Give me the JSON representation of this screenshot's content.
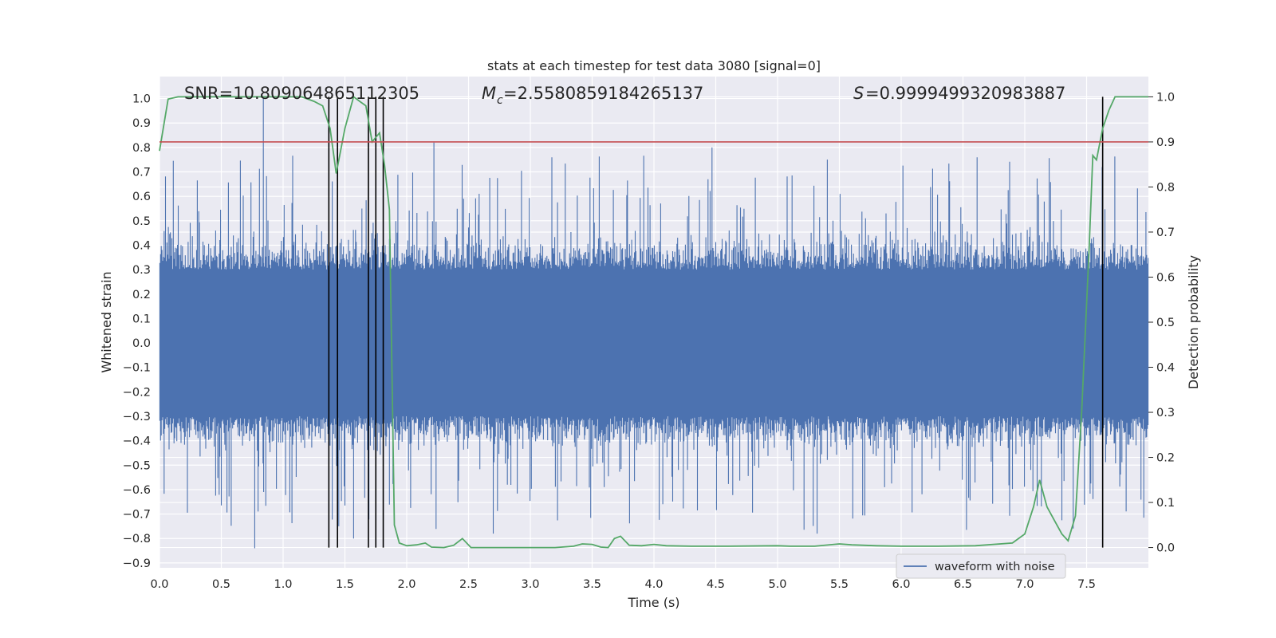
{
  "chart_data": {
    "type": "line",
    "title": "stats at each timestep for test data 3080 [signal=0]",
    "xlabel": "Time (s)",
    "ylabel": "Whitened strain",
    "ylabel_right": "Detection probability",
    "xlim": [
      0,
      8
    ],
    "ylim": [
      -0.92,
      1.09
    ],
    "ylim_right": [
      -0.045,
      1.045
    ],
    "x_ticks": [
      "0.0",
      "0.5",
      "1.0",
      "1.5",
      "2.0",
      "2.5",
      "3.0",
      "3.5",
      "4.0",
      "4.5",
      "5.0",
      "5.5",
      "6.0",
      "6.5",
      "7.0",
      "7.5"
    ],
    "y_ticks": [
      "1.0",
      "0.9",
      "0.8",
      "0.7",
      "0.6",
      "0.5",
      "0.4",
      "0.3",
      "0.2",
      "0.1",
      "0.0",
      "−0.1",
      "−0.2",
      "−0.3",
      "−0.4",
      "−0.5",
      "−0.6",
      "−0.7",
      "−0.8",
      "−0.9"
    ],
    "y_right_ticks": [
      "1.0",
      "0.9",
      "0.8",
      "0.7",
      "0.6",
      "0.5",
      "0.4",
      "0.3",
      "0.2",
      "0.1",
      "0.0"
    ],
    "stats": {
      "snr_text": "SNR=10.809064865112305",
      "mc_value": "=2.5580859184265137",
      "s_value": "=0.9999499320983887"
    },
    "threshold": 0.9,
    "vertical_lines": [
      1.37,
      1.44,
      1.69,
      1.75,
      1.81,
      7.63
    ],
    "series": [
      {
        "name": "waveform with noise",
        "color": "#4c72b0",
        "axis": "left",
        "description": "noisy whitened strain, dense band approx ±0.27 with spikes up to 1.0 and down to -0.84"
      },
      {
        "name": "detection probability",
        "color": "#55a868",
        "axis": "right",
        "x": [
          0.0,
          0.07,
          0.15,
          0.3,
          0.5,
          0.8,
          1.0,
          1.15,
          1.25,
          1.32,
          1.38,
          1.43,
          1.5,
          1.57,
          1.62,
          1.67,
          1.72,
          1.78,
          1.82,
          1.86,
          1.9,
          1.94,
          2.0,
          2.08,
          2.15,
          2.2,
          2.3,
          2.38,
          2.45,
          2.52,
          2.62,
          2.8,
          3.0,
          3.2,
          3.35,
          3.42,
          3.5,
          3.57,
          3.63,
          3.68,
          3.73,
          3.8,
          3.9,
          4.0,
          4.1,
          4.3,
          4.6,
          5.0,
          5.1,
          5.3,
          5.5,
          5.6,
          5.8,
          6.0,
          6.3,
          6.6,
          6.9,
          7.0,
          7.07,
          7.12,
          7.18,
          7.24,
          7.3,
          7.35,
          7.41,
          7.46,
          7.52,
          7.55,
          7.58,
          7.63,
          7.68,
          7.73,
          7.8,
          8.0
        ],
        "y": [
          0.88,
          0.995,
          1.0,
          1.0,
          1.0,
          1.0,
          1.0,
          1.0,
          0.99,
          0.98,
          0.93,
          0.83,
          0.93,
          1.0,
          0.99,
          0.98,
          0.9,
          0.92,
          0.85,
          0.75,
          0.05,
          0.01,
          0.004,
          0.006,
          0.01,
          0.001,
          0.0,
          0.005,
          0.02,
          0.0,
          0.0,
          0.0,
          0.0,
          0.0,
          0.003,
          0.008,
          0.007,
          0.001,
          0.0,
          0.02,
          0.025,
          0.005,
          0.004,
          0.007,
          0.004,
          0.003,
          0.003,
          0.004,
          0.003,
          0.003,
          0.008,
          0.006,
          0.004,
          0.003,
          0.003,
          0.004,
          0.01,
          0.03,
          0.09,
          0.15,
          0.09,
          0.06,
          0.03,
          0.015,
          0.07,
          0.3,
          0.66,
          0.87,
          0.86,
          0.93,
          0.97,
          1.0,
          1.0,
          1.0
        ]
      },
      {
        "name": "threshold",
        "color": "#c44e52",
        "axis": "right",
        "y": 0.9
      }
    ],
    "legend": {
      "position": "bottom-right",
      "entries": [
        "waveform with noise"
      ]
    }
  }
}
